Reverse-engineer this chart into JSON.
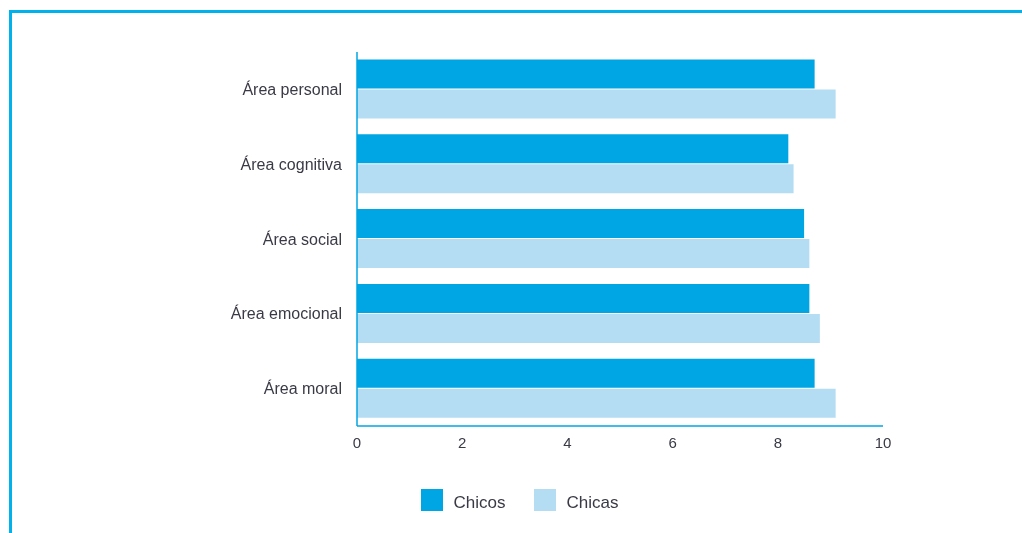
{
  "chart_data": {
    "type": "bar",
    "orientation": "horizontal",
    "categories": [
      "Área personal",
      "Área cognitiva",
      "Área social",
      "Área emocional",
      "Área moral"
    ],
    "series": [
      {
        "name": "Chicos",
        "color": "#00a5e3",
        "values": [
          8.7,
          8.2,
          8.5,
          8.6,
          8.7
        ]
      },
      {
        "name": "Chicas",
        "color": "#b4ddf4",
        "values": [
          9.1,
          8.3,
          8.6,
          8.8,
          9.1
        ]
      }
    ],
    "xlim": [
      0,
      10
    ],
    "xticks": [
      0,
      2,
      4,
      6,
      8,
      10
    ],
    "legend": "bottom"
  }
}
